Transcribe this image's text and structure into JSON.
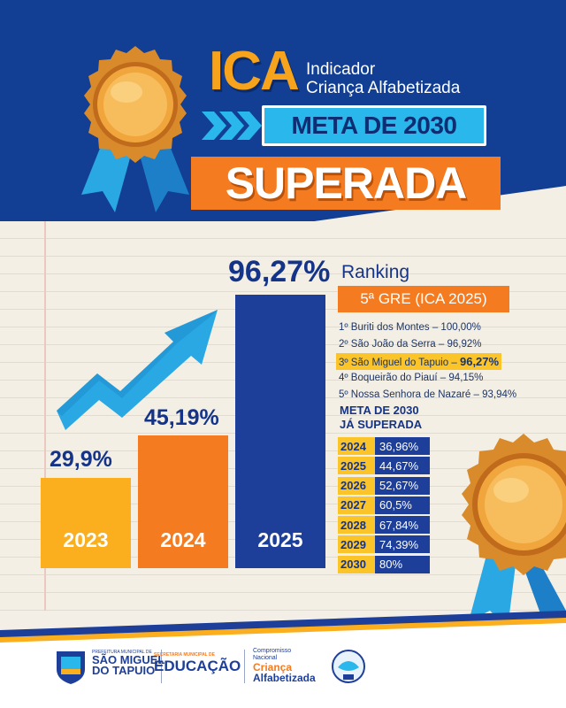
{
  "header": {
    "acronym": "ICA",
    "subtitle_line1": "Indicador",
    "subtitle_line2": "Criança Alfabetizada",
    "goal_label": "META DE 2030",
    "status_label": "SUPERADA"
  },
  "bars": [
    {
      "year": "2023",
      "value_label": "29,9%",
      "value": 29.9,
      "color": "#fbae1e"
    },
    {
      "year": "2024",
      "value_label": "45,19%",
      "value": 45.19,
      "color": "#f47b20"
    },
    {
      "year": "2025",
      "value_label": "96,27%",
      "value": 96.27,
      "color": "#1d3f99"
    }
  ],
  "ranking": {
    "title": "Ranking",
    "group": "5ª GRE (ICA 2025)",
    "items": [
      "1º Buriti dos Montes – 100,00%",
      "2º São João da Serra – 96,92%",
      "3º São Miguel do Tapuio – ",
      "4º Boqueirão do Piauí – 94,15%",
      "5º Nossa Senhora de Nazaré – 93,94%"
    ],
    "highlight_value": "96,27%"
  },
  "goals": {
    "title_line1": "META DE 2030",
    "title_line2": "JÁ SUPERADA",
    "rows": [
      {
        "year": "2024",
        "value": "36,96%"
      },
      {
        "year": "2025",
        "value": "44,67%"
      },
      {
        "year": "2026",
        "value": "52,67%"
      },
      {
        "year": "2027",
        "value": "60,5%"
      },
      {
        "year": "2028",
        "value": "67,84%"
      },
      {
        "year": "2029",
        "value": "74,39%"
      },
      {
        "year": "2030",
        "value": "80%"
      }
    ]
  },
  "footer": {
    "municipality_small": "PREFEITURA MUNICIPAL DE",
    "municipality_line1": "SÃO MIGUEL",
    "municipality_line2": "DO TAPUIO",
    "secretariat_small": "SECRETARIA MUNICIPAL DE",
    "secretariat": "EDUCAÇÃO",
    "program_small1": "Compromisso",
    "program_small2": "Nacional",
    "program_line1": "Criança",
    "program_line2": "Alfabetizada"
  },
  "colors": {
    "navy": "#123f93",
    "orange": "#f47b20",
    "yellow": "#fbae1e",
    "cyan": "#2ab8ec"
  }
}
